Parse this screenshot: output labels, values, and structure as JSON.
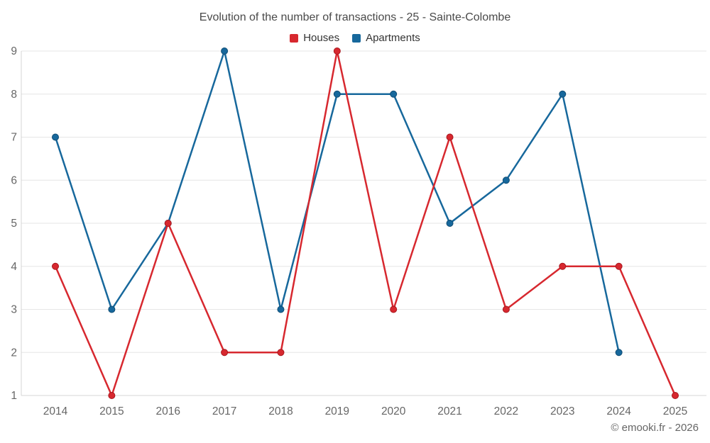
{
  "chart_data": {
    "type": "line",
    "title": "Evolution of the number of transactions - 25 - Sainte-Colombe",
    "x": [
      2014,
      2015,
      2016,
      2017,
      2018,
      2019,
      2020,
      2021,
      2022,
      2023,
      2024,
      2025
    ],
    "series": [
      {
        "name": "Houses",
        "color": "#d7282f",
        "marker_stroke": "#a8181f",
        "values": [
          4,
          1,
          5,
          2,
          2,
          9,
          3,
          7,
          3,
          4,
          4,
          1
        ]
      },
      {
        "name": "Apartments",
        "color": "#17689c",
        "marker_stroke": "#0f4c74",
        "values": [
          7,
          3,
          5,
          9,
          3,
          8,
          8,
          5,
          6,
          8,
          2,
          null
        ]
      }
    ],
    "xlabel": "",
    "ylabel": "",
    "ylim": [
      1,
      9
    ],
    "yticks": [
      1,
      2,
      3,
      4,
      5,
      6,
      7,
      8,
      9
    ],
    "grid": true,
    "legend_position": "top"
  },
  "footer": {
    "credit": "© emooki.fr - 2026"
  },
  "colors": {
    "grid": "#e6e6e6",
    "axis": "#d4d4d4",
    "tick_text": "#666666",
    "title_text": "#4a4a4a",
    "legend_text": "#333333",
    "background": "#ffffff"
  }
}
